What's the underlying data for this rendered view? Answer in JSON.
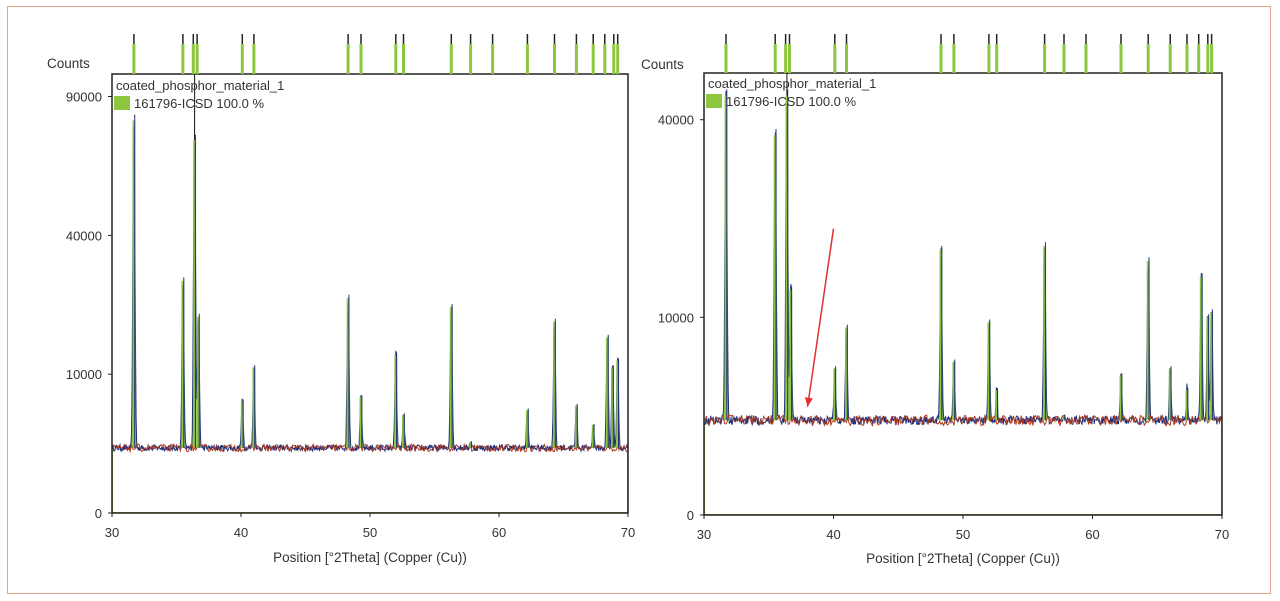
{
  "chart_data": [
    {
      "type": "line",
      "id": "left",
      "ylabel": "Counts",
      "xlabel": "Position [°2Theta] (Copper (Cu))",
      "xlim": [
        30,
        70
      ],
      "xticks": [
        30,
        40,
        50,
        60,
        70
      ],
      "y_scale": "sqrt",
      "ylim": [
        0,
        100000
      ],
      "yticks": [
        0,
        10000,
        40000,
        90000
      ],
      "grid": false,
      "legend": {
        "title": "coated_phosphor_material_1",
        "entries": [
          "161796-ICSD 100.0 %"
        ],
        "position": "top-left"
      },
      "background": 2200,
      "series": [
        {
          "name": "coated_phosphor_material_1",
          "peaks_2theta": [
            31.7,
            35.5,
            36.4,
            36.7,
            40.1,
            41.0,
            48.3,
            49.3,
            52.0,
            52.6,
            56.3,
            57.8,
            62.2,
            64.3,
            66.0,
            67.3,
            68.4,
            68.8,
            69.2
          ],
          "peaks_counts": [
            80000,
            28000,
            72000,
            20000,
            6500,
            11000,
            24000,
            7000,
            13000,
            5000,
            22000,
            2600,
            5500,
            19000,
            6000,
            4000,
            16000,
            11000,
            12000
          ]
        }
      ],
      "reference_ticks": [
        31.7,
        35.5,
        36.3,
        36.6,
        40.1,
        41.0,
        48.3,
        49.3,
        52.0,
        52.6,
        56.3,
        57.8,
        59.5,
        62.2,
        64.3,
        66.0,
        67.3,
        68.2,
        68.9,
        69.2
      ],
      "colors": {
        "observed": "#1f2f7a",
        "calculated": "#8dc63f",
        "background_line": "#b03a1e",
        "frame": "#222222"
      }
    },
    {
      "type": "line",
      "id": "right",
      "ylabel": "Counts",
      "xlabel": "Position [°2Theta] (Copper (Cu))",
      "xlim": [
        30,
        70
      ],
      "xticks": [
        30,
        40,
        50,
        60,
        70
      ],
      "y_scale": "sqrt",
      "ylim": [
        0,
        50000
      ],
      "yticks": [
        0,
        10000,
        40000
      ],
      "grid": false,
      "legend": {
        "title": "coated_phosphor_material_1",
        "entries": [
          "161796-ICSD 100.0 %"
        ],
        "position": "top-left"
      },
      "background": 2300,
      "series": [
        {
          "name": "coated_phosphor_material_1",
          "peaks_2theta": [
            31.7,
            35.5,
            36.4,
            36.7,
            40.1,
            41.0,
            48.3,
            49.3,
            52.0,
            52.6,
            56.3,
            57.8,
            62.2,
            64.3,
            66.0,
            67.3,
            68.4,
            68.9,
            69.2
          ],
          "peaks_counts": [
            45000,
            37000,
            45000,
            13000,
            5500,
            9000,
            18000,
            6000,
            9500,
            4000,
            18500,
            2500,
            5000,
            16500,
            5500,
            4000,
            14500,
            10000,
            10500
          ]
        }
      ],
      "reference_ticks": [
        31.7,
        35.5,
        36.3,
        36.6,
        40.1,
        41.0,
        48.3,
        49.3,
        52.0,
        52.6,
        56.3,
        57.8,
        59.5,
        62.2,
        64.3,
        66.0,
        67.3,
        68.2,
        68.9,
        69.2
      ],
      "annotation": {
        "type": "arrow",
        "from": [
          40.0,
          21000
        ],
        "to": [
          38.0,
          3000
        ],
        "color": "#e03030"
      },
      "colors": {
        "observed": "#1f2f7a",
        "calculated": "#8dc63f",
        "background_line": "#b03a1e",
        "frame": "#222222"
      }
    }
  ]
}
